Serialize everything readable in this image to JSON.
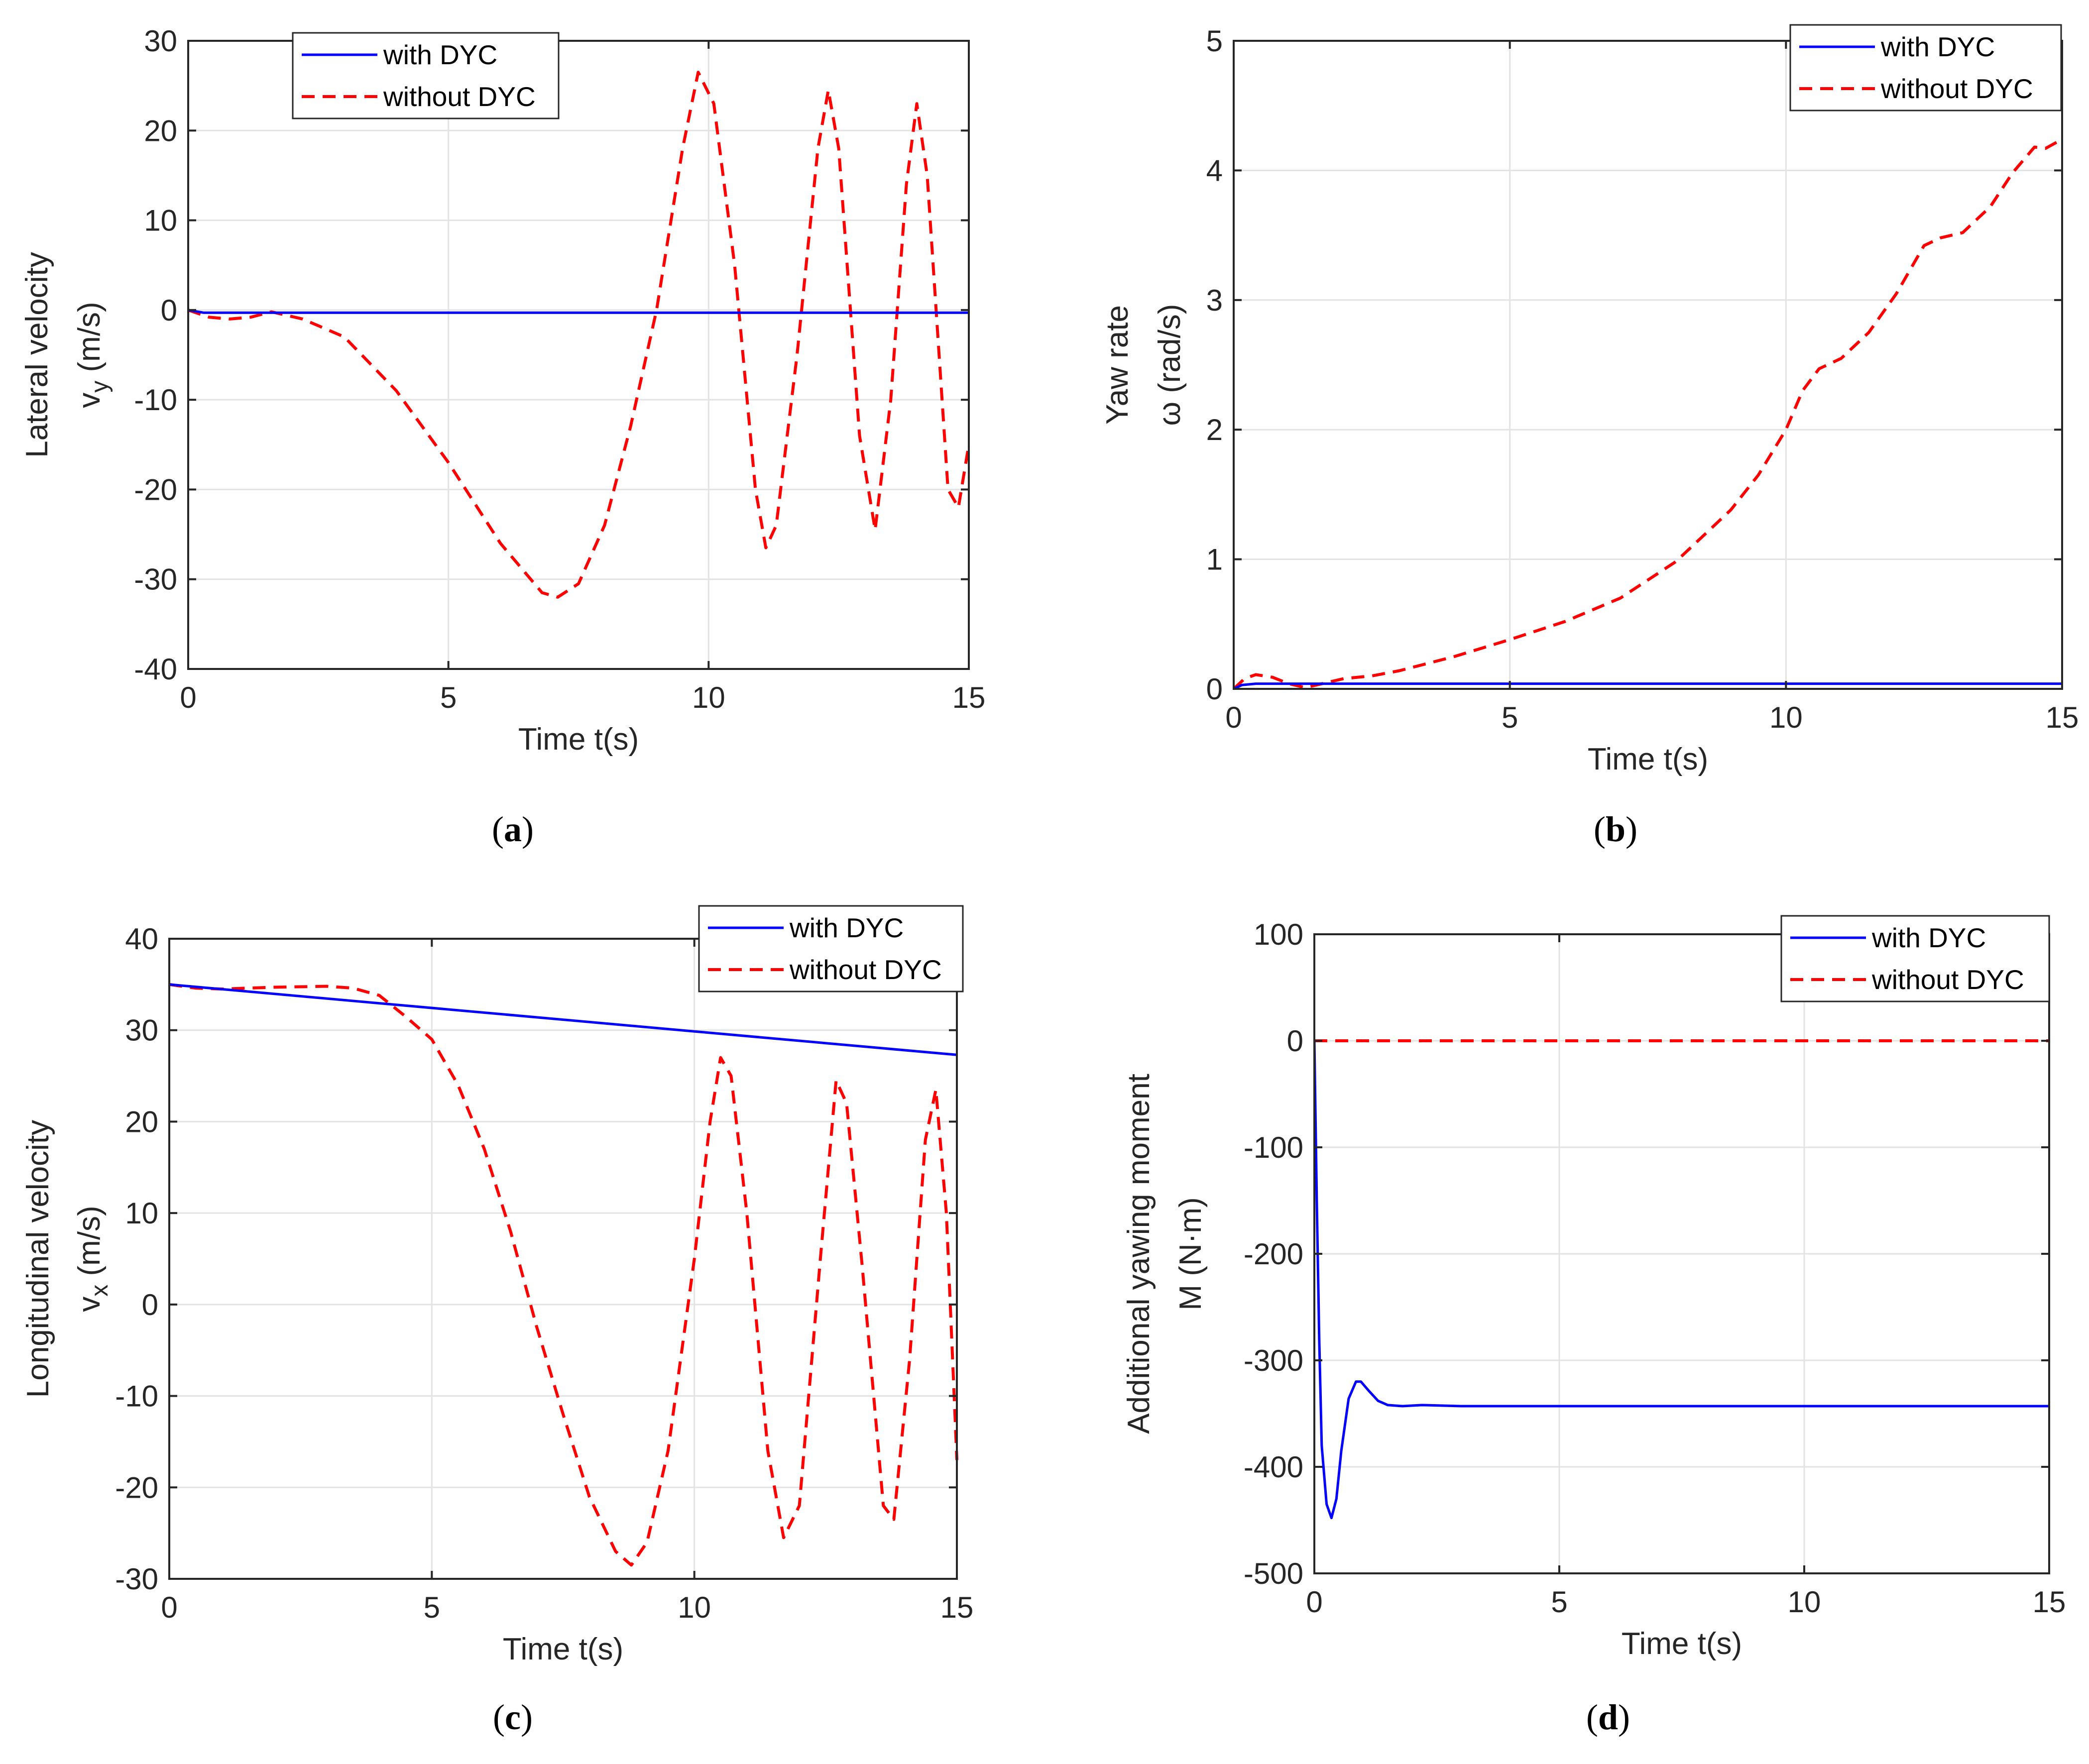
{
  "colors": {
    "with": "#0000ff",
    "without": "#ff0000",
    "axis": "#262626",
    "grid": "#e3e3e3"
  },
  "legend": {
    "with": "with DYC",
    "without": "without DYC"
  },
  "chart_data": [
    {
      "id": "a",
      "type": "line",
      "caption": {
        "open": "(",
        "letter": "a",
        "close": ")"
      },
      "xlabel": "Time t(s)",
      "ylabel_lines": [
        "Lateral velocity",
        "v",
        "y",
        " (m/s)"
      ],
      "xlim": [
        0,
        15
      ],
      "ylim": [
        -40,
        30
      ],
      "xticks": [
        0,
        5,
        10,
        15
      ],
      "yticks": [
        -40,
        -30,
        -20,
        -10,
        0,
        10,
        20,
        30
      ],
      "legend_position": "top-center",
      "series": [
        {
          "name": "with DYC",
          "style": "solid",
          "x": [
            0,
            0.3,
            1,
            15
          ],
          "y": [
            0,
            -0.3,
            -0.3,
            -0.3
          ]
        },
        {
          "name": "without DYC",
          "style": "dashed",
          "x": [
            0,
            0.4,
            0.8,
            1.2,
            1.6,
            2.2,
            3,
            4,
            5,
            6,
            6.8,
            7.1,
            7.5,
            8,
            8.5,
            9,
            9.5,
            9.8,
            10.1,
            10.5,
            10.9,
            11.1,
            11.3,
            11.7,
            12.1,
            12.3,
            12.5,
            12.9,
            13.2,
            13.5,
            13.8,
            14,
            14.2,
            14.6,
            14.8,
            15
          ],
          "y": [
            0,
            -0.8,
            -1,
            -0.8,
            -0.2,
            -1,
            -3,
            -9,
            -17,
            -26,
            -31.5,
            -32,
            -30.5,
            -24,
            -13,
            0,
            18,
            26.5,
            23,
            5,
            -20,
            -26.5,
            -24,
            -5,
            18,
            24.5,
            18,
            -14,
            -24.5,
            -10,
            14,
            23,
            15,
            -20,
            -22,
            -15
          ]
        }
      ]
    },
    {
      "id": "b",
      "type": "line",
      "caption": {
        "open": "(",
        "letter": "b",
        "close": ")"
      },
      "xlabel": "Time t(s)",
      "ylabel_lines": [
        "Yaw rate",
        "ω (rad/s)"
      ],
      "xlim": [
        0,
        15
      ],
      "ylim": [
        0,
        5
      ],
      "xticks": [
        0,
        5,
        10,
        15
      ],
      "yticks": [
        0,
        1,
        2,
        3,
        4,
        5
      ],
      "legend_position": "top-right",
      "series": [
        {
          "name": "with DYC",
          "style": "solid",
          "x": [
            0,
            0.15,
            0.4,
            1,
            15
          ],
          "y": [
            0,
            0.03,
            0.04,
            0.04,
            0.04
          ]
        },
        {
          "name": "without DYC",
          "style": "dashed",
          "x": [
            0,
            0.2,
            0.4,
            0.7,
            1,
            1.3,
            1.6,
            2,
            2.5,
            3,
            4,
            5,
            6,
            7,
            8,
            9,
            9.5,
            10,
            10.3,
            10.6,
            11,
            11.5,
            12,
            12.5,
            12.8,
            13.2,
            13.7,
            14.1,
            14.5,
            14.7,
            15
          ],
          "y": [
            0,
            0.08,
            0.11,
            0.09,
            0.04,
            0.01,
            0.04,
            0.08,
            0.1,
            0.14,
            0.25,
            0.38,
            0.52,
            0.7,
            0.98,
            1.38,
            1.65,
            2,
            2.3,
            2.47,
            2.55,
            2.75,
            3.05,
            3.42,
            3.48,
            3.52,
            3.72,
            3.98,
            4.18,
            4.17,
            4.24
          ]
        }
      ]
    },
    {
      "id": "c",
      "type": "line",
      "caption": {
        "open": "(",
        "letter": "c",
        "close": ")"
      },
      "xlabel": "Time t(s)",
      "ylabel_lines": [
        "Longitudinal velocity",
        "v",
        "x",
        " (m/s)"
      ],
      "xlim": [
        0,
        15
      ],
      "ylim": [
        -30,
        40
      ],
      "xticks": [
        0,
        5,
        10,
        15
      ],
      "yticks": [
        -30,
        -20,
        -10,
        0,
        10,
        20,
        30,
        40
      ],
      "legend_position": "top-right",
      "series": [
        {
          "name": "with DYC",
          "style": "solid",
          "x": [
            0,
            15
          ],
          "y": [
            35,
            27.3
          ]
        },
        {
          "name": "without DYC",
          "style": "dashed",
          "x": [
            0,
            0.5,
            1,
            2,
            3,
            3.5,
            4,
            4.5,
            5,
            5.5,
            6,
            6.5,
            7,
            7.5,
            8,
            8.5,
            8.8,
            9.1,
            9.5,
            10,
            10.3,
            10.5,
            10.7,
            11,
            11.4,
            11.7,
            12,
            12.4,
            12.7,
            12.9,
            13.2,
            13.6,
            13.8,
            14.1,
            14.4,
            14.6,
            14.8,
            15
          ],
          "y": [
            35,
            34.6,
            34.5,
            34.7,
            34.8,
            34.6,
            33.8,
            31.5,
            29,
            24,
            17,
            8,
            -2.5,
            -12,
            -21,
            -27,
            -28.5,
            -26,
            -16,
            5,
            20,
            27,
            25,
            10,
            -16,
            -25.5,
            -22,
            5,
            24.5,
            22,
            4,
            -22,
            -23.5,
            -6,
            18,
            23.5,
            10,
            -17
          ]
        }
      ]
    },
    {
      "id": "d",
      "type": "line",
      "caption": {
        "open": "(",
        "letter": "d",
        "close": ")"
      },
      "xlabel": "Time t(s)",
      "ylabel_lines": [
        "Additional yawing moment",
        "M (N·m)"
      ],
      "xlim": [
        0,
        15
      ],
      "ylim": [
        -500,
        100
      ],
      "xticks": [
        0,
        5,
        10,
        15
      ],
      "yticks": [
        -500,
        -400,
        -300,
        -200,
        -100,
        0,
        100
      ],
      "legend_position": "top-right",
      "series": [
        {
          "name": "with DYC",
          "style": "solid",
          "x": [
            0,
            0.05,
            0.1,
            0.15,
            0.25,
            0.35,
            0.45,
            0.55,
            0.7,
            0.85,
            0.95,
            1.1,
            1.3,
            1.5,
            1.8,
            2.2,
            3,
            15
          ],
          "y": [
            0,
            -150,
            -280,
            -380,
            -435,
            -448,
            -430,
            -385,
            -336,
            -320,
            -320,
            -328,
            -338,
            -342,
            -343,
            -342,
            -343,
            -343
          ]
        },
        {
          "name": "without DYC",
          "style": "dashed",
          "x": [
            0,
            15
          ],
          "y": [
            0,
            0
          ]
        }
      ]
    }
  ]
}
